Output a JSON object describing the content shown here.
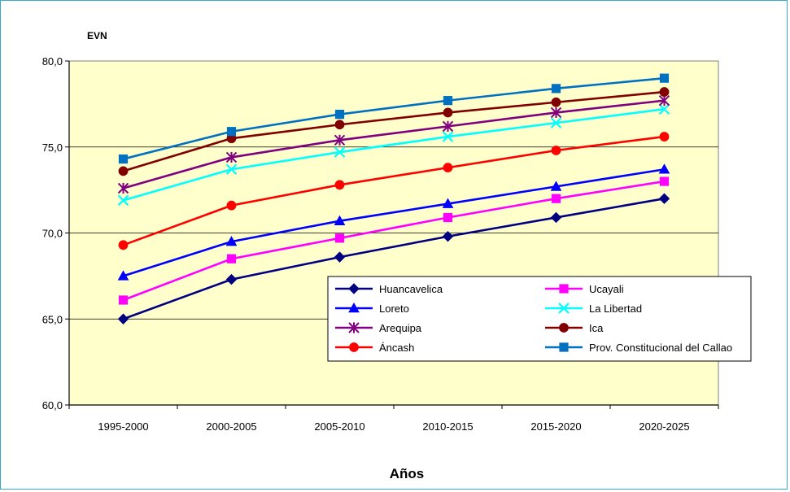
{
  "chart_data": {
    "type": "line",
    "title": "",
    "ylabel": "EVN",
    "xlabel": "Años",
    "ylim": [
      60,
      80
    ],
    "yticks": [
      60,
      65,
      70,
      75,
      80
    ],
    "ytick_labels": [
      "60,0",
      "65,0",
      "70,0",
      "75,0",
      "80,0"
    ],
    "grid": true,
    "legend_position": "bottom-right",
    "plot_background": "#ffffcc",
    "categories": [
      "1995-2000",
      "2000-2005",
      "2005-2010",
      "2010-2015",
      "2015-2020",
      "2020-2025"
    ],
    "series": [
      {
        "name": "Huancavelica",
        "color": "#000080",
        "marker": "diamond",
        "values": [
          65.0,
          67.3,
          68.6,
          69.8,
          70.9,
          72.0
        ]
      },
      {
        "name": "Ucayali",
        "color": "#ff00ff",
        "marker": "square",
        "values": [
          66.1,
          68.5,
          69.7,
          70.9,
          72.0,
          73.0
        ]
      },
      {
        "name": "Loreto",
        "color": "#0000ff",
        "marker": "triangle",
        "values": [
          67.5,
          69.5,
          70.7,
          71.7,
          72.7,
          73.7
        ]
      },
      {
        "name": "La Libertad",
        "color": "#00ffff",
        "marker": "x",
        "values": [
          71.9,
          73.7,
          74.7,
          75.6,
          76.4,
          77.2
        ]
      },
      {
        "name": "Arequipa",
        "color": "#800080",
        "marker": "star",
        "values": [
          72.6,
          74.4,
          75.4,
          76.2,
          77.0,
          77.7
        ]
      },
      {
        "name": "Ica",
        "color": "#800000",
        "marker": "circle",
        "values": [
          73.6,
          75.5,
          76.3,
          77.0,
          77.6,
          78.2
        ]
      },
      {
        "name": "Áncash",
        "color": "#ff0000",
        "marker": "circle",
        "values": [
          69.3,
          71.6,
          72.8,
          73.8,
          74.8,
          75.6
        ]
      },
      {
        "name": "Prov. Constitucional del Callao",
        "color": "#0070c0",
        "marker": "square",
        "values": [
          74.3,
          75.9,
          76.9,
          77.7,
          78.4,
          79.0
        ]
      }
    ]
  }
}
